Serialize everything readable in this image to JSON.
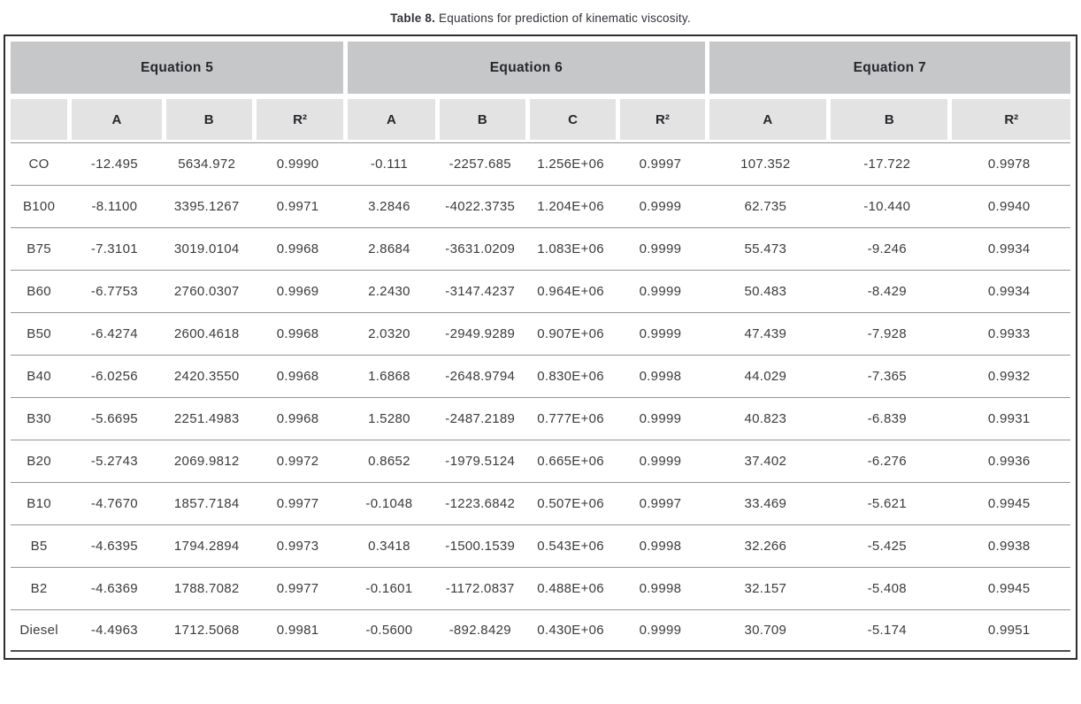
{
  "title": {
    "label": "Table 8.",
    "text": " Equations for prediction of kinematic viscosity."
  },
  "table": {
    "groups": [
      {
        "label": "Equation 5",
        "cols": 4
      },
      {
        "label": "Equation 6",
        "cols": 4
      },
      {
        "label": "Equation 7",
        "cols": 3
      }
    ],
    "subheaders": [
      "",
      "A",
      "B",
      "R²",
      "A",
      "B",
      "C",
      "R²",
      "A",
      "B",
      "R²"
    ],
    "rows": [
      {
        "label": "CO",
        "values": [
          "-12.495",
          "5634.972",
          "0.9990",
          "-0.111",
          "-2257.685",
          "1.256E+06",
          "0.9997",
          "107.352",
          "-17.722",
          "0.9978"
        ]
      },
      {
        "label": "B100",
        "values": [
          "-8.1100",
          "3395.1267",
          "0.9971",
          "3.2846",
          "-4022.3735",
          "1.204E+06",
          "0.9999",
          "62.735",
          "-10.440",
          "0.9940"
        ]
      },
      {
        "label": "B75",
        "values": [
          "-7.3101",
          "3019.0104",
          "0.9968",
          "2.8684",
          "-3631.0209",
          "1.083E+06",
          "0.9999",
          "55.473",
          "-9.246",
          "0.9934"
        ]
      },
      {
        "label": "B60",
        "values": [
          "-6.7753",
          "2760.0307",
          "0.9969",
          "2.2430",
          "-3147.4237",
          "0.964E+06",
          "0.9999",
          "50.483",
          "-8.429",
          "0.9934"
        ]
      },
      {
        "label": "B50",
        "values": [
          "-6.4274",
          "2600.4618",
          "0.9968",
          "2.0320",
          "-2949.9289",
          "0.907E+06",
          "0.9999",
          "47.439",
          "-7.928",
          "0.9933"
        ]
      },
      {
        "label": "B40",
        "values": [
          "-6.0256",
          "2420.3550",
          "0.9968",
          "1.6868",
          "-2648.9794",
          "0.830E+06",
          "0.9998",
          "44.029",
          "-7.365",
          "0.9932"
        ]
      },
      {
        "label": "B30",
        "values": [
          "-5.6695",
          "2251.4983",
          "0.9968",
          "1.5280",
          "-2487.2189",
          "0.777E+06",
          "0.9999",
          "40.823",
          "-6.839",
          "0.9931"
        ]
      },
      {
        "label": "B20",
        "values": [
          "-5.2743",
          "2069.9812",
          "0.9972",
          "0.8652",
          "-1979.5124",
          "0.665E+06",
          "0.9999",
          "37.402",
          "-6.276",
          "0.9936"
        ]
      },
      {
        "label": "B10",
        "values": [
          "-4.7670",
          "1857.7184",
          "0.9977",
          "-0.1048",
          "-1223.6842",
          "0.507E+06",
          "0.9997",
          "33.469",
          "-5.621",
          "0.9945"
        ]
      },
      {
        "label": "B5",
        "values": [
          "-4.6395",
          "1794.2894",
          "0.9973",
          "0.3418",
          "-1500.1539",
          "0.543E+06",
          "0.9998",
          "32.266",
          "-5.425",
          "0.9938"
        ]
      },
      {
        "label": "B2",
        "values": [
          "-4.6369",
          "1788.7082",
          "0.9977",
          "-0.1601",
          "-1172.0837",
          "0.488E+06",
          "0.9998",
          "32.157",
          "-5.408",
          "0.9945"
        ]
      },
      {
        "label": "Diesel",
        "values": [
          "-4.4963",
          "1712.5068",
          "0.9981",
          "-0.5600",
          "-892.8429",
          "0.430E+06",
          "0.9999",
          "30.709",
          "-5.174",
          "0.9951"
        ]
      }
    ]
  },
  "colors": {
    "group_header_bg": "#c6c7c9",
    "sub_header_bg": "#e3e3e4",
    "outer_border": "#2d2d2d",
    "row_separator": "#949494",
    "text": "#3b3b3b"
  }
}
